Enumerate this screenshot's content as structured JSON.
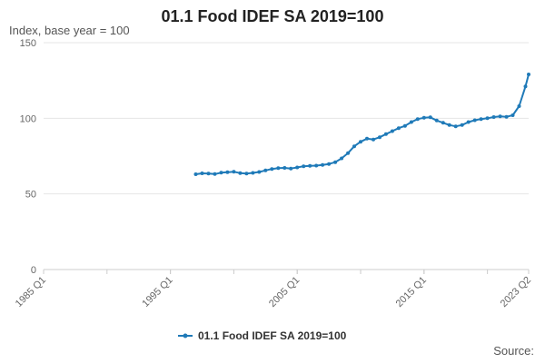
{
  "chart_data": {
    "type": "line",
    "title": "01.1 Food IDEF SA 2019=100",
    "ylabel": "Index, base year = 100",
    "xlabel": "",
    "source_label": "Source:",
    "x_tick_labels": [
      "1985 Q1",
      "1995 Q1",
      "2005 Q1",
      "2015 Q1",
      "2023 Q2"
    ],
    "x_tick_years": [
      1985.0,
      1995.0,
      2005.0,
      2015.0,
      2023.25
    ],
    "x_range": [
      1985.0,
      2023.25
    ],
    "y_ticks": [
      0,
      50,
      100,
      150
    ],
    "ylim": [
      0,
      150
    ],
    "grid": "horizontal",
    "legend_position": "bottom",
    "series": [
      {
        "name": "01.1 Food IDEF SA 2019=100",
        "color": "#1f7ab8",
        "points": [
          [
            "1997 Q1",
            63.0
          ],
          [
            "1997 Q3",
            63.6
          ],
          [
            "1998 Q1",
            63.4
          ],
          [
            "1998 Q3",
            63.1
          ],
          [
            "1999 Q1",
            64.0
          ],
          [
            "1999 Q3",
            64.3
          ],
          [
            "2000 Q1",
            64.6
          ],
          [
            "2000 Q3",
            63.8
          ],
          [
            "2001 Q1",
            63.5
          ],
          [
            "2001 Q3",
            63.9
          ],
          [
            "2002 Q1",
            64.5
          ],
          [
            "2002 Q3",
            65.5
          ],
          [
            "2003 Q1",
            66.5
          ],
          [
            "2003 Q3",
            67.0
          ],
          [
            "2004 Q1",
            67.2
          ],
          [
            "2004 Q3",
            66.8
          ],
          [
            "2005 Q1",
            67.5
          ],
          [
            "2005 Q3",
            68.3
          ],
          [
            "2006 Q1",
            68.6
          ],
          [
            "2006 Q3",
            68.7
          ],
          [
            "2007 Q1",
            69.2
          ],
          [
            "2007 Q3",
            69.8
          ],
          [
            "2008 Q1",
            71.0
          ],
          [
            "2008 Q3",
            73.5
          ],
          [
            "2009 Q1",
            77.0
          ],
          [
            "2009 Q3",
            81.5
          ],
          [
            "2010 Q1",
            84.5
          ],
          [
            "2010 Q3",
            86.5
          ],
          [
            "2011 Q1",
            86.0
          ],
          [
            "2011 Q3",
            87.5
          ],
          [
            "2012 Q1",
            89.5
          ],
          [
            "2012 Q3",
            91.5
          ],
          [
            "2013 Q1",
            93.5
          ],
          [
            "2013 Q3",
            95.0
          ],
          [
            "2014 Q1",
            97.5
          ],
          [
            "2014 Q3",
            99.5
          ],
          [
            "2015 Q1",
            100.3
          ],
          [
            "2015 Q3",
            100.6
          ],
          [
            "2016 Q1",
            98.5
          ],
          [
            "2016 Q3",
            97.0
          ],
          [
            "2017 Q1",
            95.5
          ],
          [
            "2017 Q3",
            94.7
          ],
          [
            "2018 Q1",
            95.5
          ],
          [
            "2018 Q3",
            97.5
          ],
          [
            "2019 Q1",
            98.7
          ],
          [
            "2019 Q3",
            99.5
          ],
          [
            "2020 Q1",
            100.0
          ],
          [
            "2020 Q3",
            100.8
          ],
          [
            "2021 Q1",
            101.3
          ],
          [
            "2021 Q3",
            101.0
          ],
          [
            "2022 Q1",
            102.0
          ],
          [
            "2022 Q3",
            108.0
          ],
          [
            "2023 Q1",
            121.0
          ],
          [
            "2023 Q2",
            129.0
          ]
        ]
      }
    ]
  }
}
